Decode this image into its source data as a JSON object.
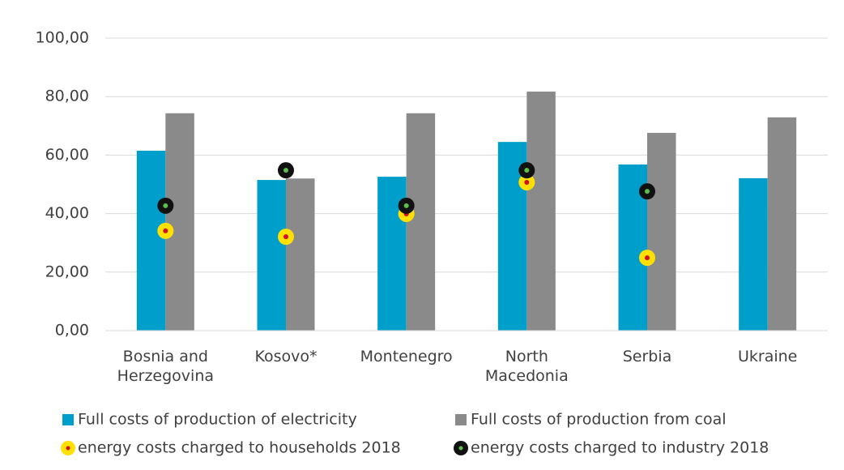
{
  "chart_data": {
    "type": "bar",
    "categories": [
      "Bosnia and Herzegovina",
      "Kosovo*",
      "Montenegro",
      "North Macedonia",
      "Serbia",
      "Ukraine"
    ],
    "series": [
      {
        "name": "Full costs of production of electricity",
        "type": "bar",
        "color": "#009fcb",
        "values": [
          61.5,
          51.5,
          52.6,
          64.5,
          56.8,
          52.1
        ]
      },
      {
        "name": "Full costs of production from coal",
        "type": "bar",
        "color": "#8a8a8a",
        "values": [
          74.3,
          52.0,
          74.3,
          81.7,
          67.6,
          72.9
        ]
      },
      {
        "name": "energy costs charged to households 2018",
        "type": "scatter",
        "color": "#ffe000",
        "center_color": "#d0102a",
        "values": [
          34.1,
          32.1,
          39.9,
          50.7,
          24.9,
          null
        ]
      },
      {
        "name": "energy costs charged to industry 2018",
        "type": "scatter",
        "color": "#111111",
        "center_color": "#5cbf4a",
        "values": [
          42.7,
          54.8,
          42.7,
          54.8,
          47.6,
          null
        ]
      }
    ],
    "ylim": [
      0,
      100
    ],
    "yticks": [
      {
        "value": 0,
        "label": "0,00"
      },
      {
        "value": 20,
        "label": "20,00"
      },
      {
        "value": 40,
        "label": "40,00"
      },
      {
        "value": 60,
        "label": "60,00"
      },
      {
        "value": 80,
        "label": "80,00"
      },
      {
        "value": 100,
        "label": "100,00"
      }
    ],
    "grid": true
  }
}
